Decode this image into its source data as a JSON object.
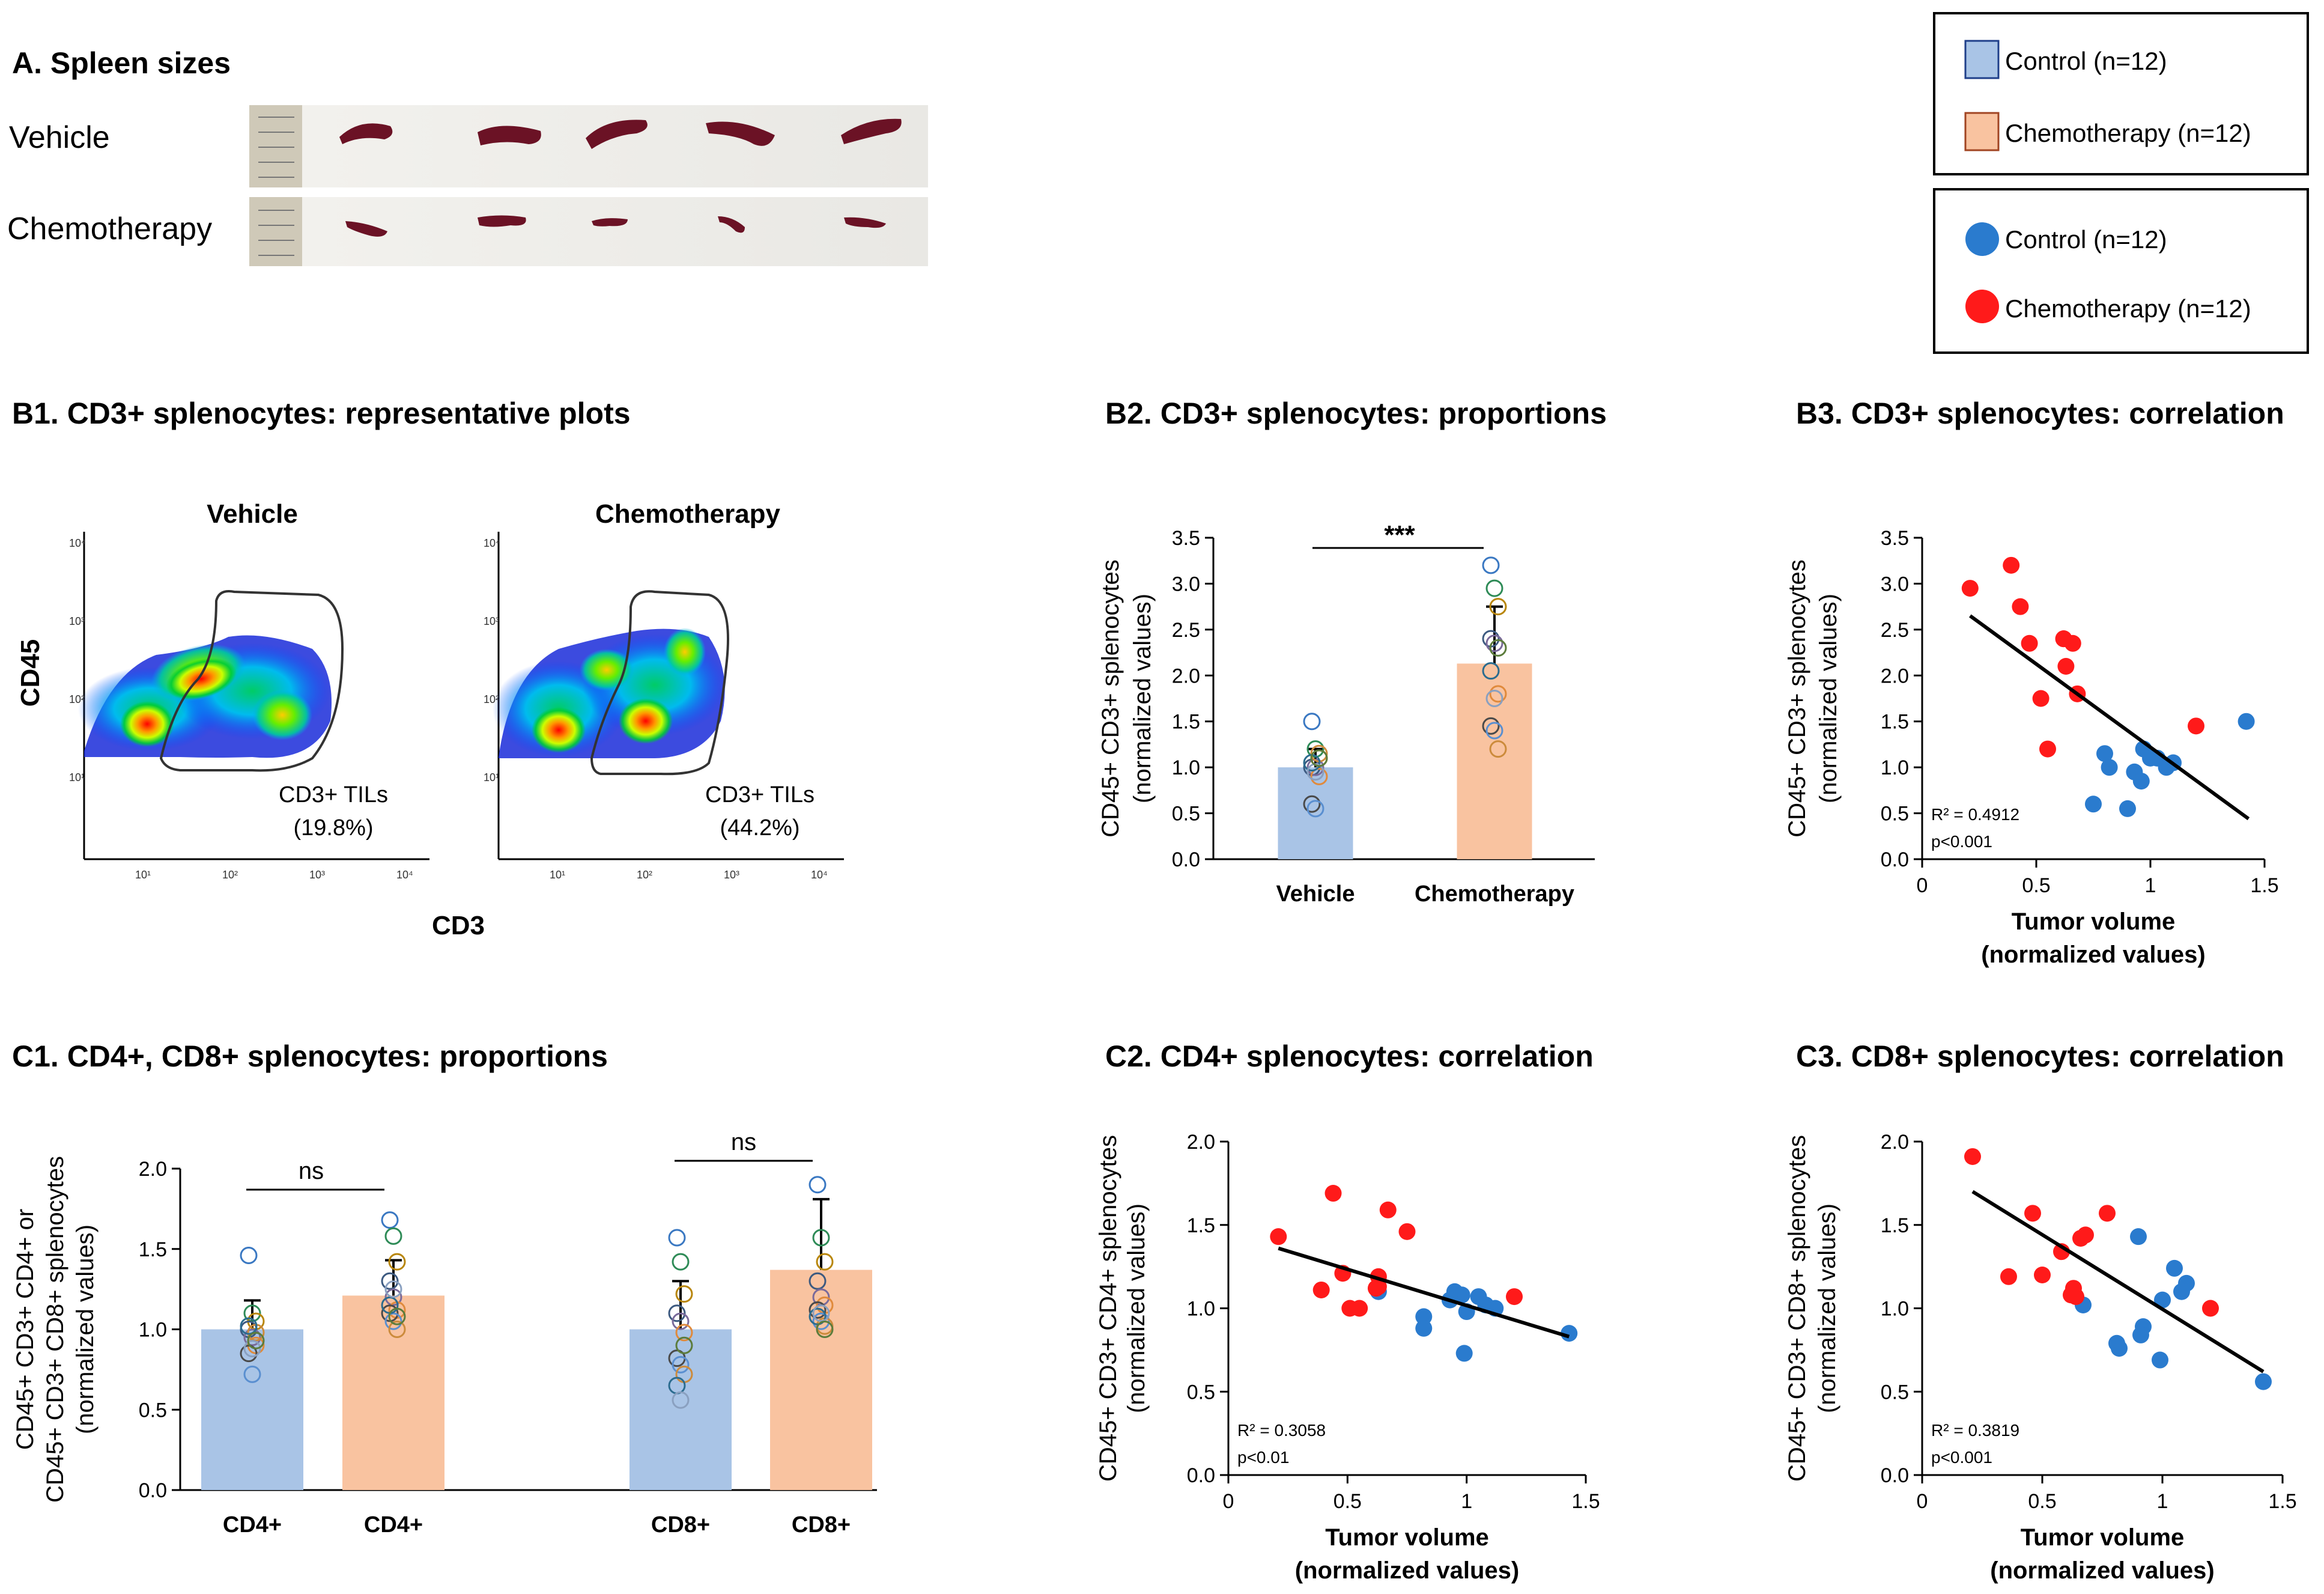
{
  "colors": {
    "control_bar": "#a9c4e6",
    "chemo_bar": "#f9c3a0",
    "control_dot": "#2a7bce",
    "chemo_dot": "#ff1a1a",
    "spleen": "#6b1225"
  },
  "panel_a": {
    "title": "A. Spleen sizes",
    "row_labels": [
      "Vehicle",
      "Chemotherapy"
    ]
  },
  "legend_bars": {
    "items": [
      "Control (n=12)",
      "Chemotherapy (n=12)"
    ]
  },
  "legend_dots": {
    "items": [
      "Control (n=12)",
      "Chemotherapy (n=12)"
    ]
  },
  "panel_b1": {
    "title": "B1. CD3+ splenocytes: representative plots",
    "plot_titles": [
      "Vehicle",
      "Chemotherapy"
    ],
    "gate_labels": [
      "CD3+ TILs",
      "CD3+ TILs"
    ],
    "gate_values": [
      "(19.8%)",
      "(44.2%)"
    ],
    "ylabel": "CD45",
    "xlabel": "CD3",
    "log_ticks": [
      "10¹",
      "10²",
      "10³",
      "10⁴"
    ]
  },
  "chart_data": [
    {
      "id": "B2",
      "type": "bar",
      "title": "B2. CD3+ splenocytes: proportions",
      "categories": [
        "Vehicle",
        "Chemotherapy"
      ],
      "values": [
        1.0,
        2.13
      ],
      "errors": [
        0.2,
        0.62
      ],
      "points": [
        [
          1.5,
          1.2,
          1.1,
          1.0,
          1.0,
          0.9,
          0.6,
          0.55,
          1.15,
          1.05,
          0.95,
          1.1
        ],
        [
          3.2,
          2.95,
          2.75,
          2.4,
          2.35,
          1.8,
          1.45,
          1.4,
          1.2,
          2.05,
          1.75,
          2.3
        ]
      ],
      "significance": "***",
      "ylabel": "CD45+ CD3+ splenocytes",
      "ylabel2": "(normalized values)",
      "ylim": [
        0,
        3.5
      ],
      "yticks": [
        "0.0",
        "0.5",
        "1.0",
        "1.5",
        "2.0",
        "2.5",
        "3.0",
        "3.5"
      ]
    },
    {
      "id": "B3",
      "type": "scatter",
      "title": "B3. CD3+ splenocytes: correlation",
      "control": {
        "x": [
          1.42,
          0.97,
          1.03,
          1.07,
          1.1,
          0.8,
          0.82,
          0.93,
          0.96,
          0.75,
          0.9,
          1.0
        ],
        "y": [
          1.5,
          1.2,
          1.1,
          1.0,
          1.05,
          1.15,
          1.0,
          0.95,
          0.85,
          0.6,
          0.55,
          1.1
        ]
      },
      "chemo": {
        "x": [
          0.21,
          0.43,
          0.39,
          0.47,
          0.62,
          0.66,
          0.63,
          0.68,
          0.52,
          0.55,
          1.2,
          0.62
        ],
        "y": [
          2.95,
          2.75,
          3.2,
          2.35,
          2.4,
          2.35,
          2.1,
          1.8,
          1.75,
          1.2,
          1.45,
          2.4
        ]
      },
      "trend": {
        "x": [
          0.21,
          1.43
        ],
        "y": [
          2.65,
          0.44
        ]
      },
      "r2": "R² = 0.4912",
      "p": "p<0.001",
      "ylabel": "CD45+ CD3+ splenocytes",
      "ylabel2": "(normalized values)",
      "xlabel": "Tumor volume",
      "xlabel2": "(normalized values)",
      "xlim": [
        0,
        1.5
      ],
      "ylim": [
        0,
        3.5
      ],
      "xticks": [
        "0",
        "0.5",
        "1",
        "1.5"
      ],
      "yticks": [
        "0.0",
        "0.5",
        "1.0",
        "1.5",
        "2.0",
        "2.5",
        "3.0",
        "3.5"
      ]
    },
    {
      "id": "C1",
      "type": "bar",
      "title": "C1. CD4+, CD8+ splenocytes: proportions",
      "categories": [
        "CD4+",
        "CD4+",
        "CD8+",
        "CD8+"
      ],
      "groups": [
        "control",
        "chemo",
        "control",
        "chemo"
      ],
      "values": [
        1.0,
        1.21,
        1.0,
        1.37
      ],
      "errors": [
        0.18,
        0.22,
        0.3,
        0.44
      ],
      "points": [
        [
          1.46,
          1.1,
          1.05,
          1.0,
          0.95,
          0.9,
          0.85,
          0.72,
          0.98,
          1.02,
          0.88,
          0.93
        ],
        [
          1.68,
          1.58,
          1.42,
          1.3,
          1.2,
          1.12,
          1.1,
          1.05,
          1.0,
          1.15,
          1.25,
          1.08
        ],
        [
          1.57,
          1.42,
          1.22,
          1.1,
          1.05,
          0.98,
          0.82,
          0.78,
          0.72,
          0.65,
          0.56,
          0.9
        ],
        [
          1.9,
          1.57,
          1.42,
          1.3,
          1.2,
          1.15,
          1.12,
          1.05,
          1.02,
          1.08,
          1.1,
          1.0
        ]
      ],
      "significance": [
        "ns",
        "ns"
      ],
      "ylabel": "CD45+ CD3+ CD4+ or",
      "ylabel2": "CD45+ CD3+ CD8+ splenocytes",
      "ylabel3": "(normalized values)",
      "ylim": [
        0,
        2.0
      ],
      "yticks": [
        "0.0",
        "0.5",
        "1.0",
        "1.5",
        "2.0"
      ]
    },
    {
      "id": "C2",
      "type": "scatter",
      "title": "C2. CD4+ splenocytes: correlation",
      "control": {
        "x": [
          1.43,
          0.95,
          0.98,
          1.05,
          1.08,
          1.12,
          0.82,
          0.82,
          0.93,
          0.99,
          0.63,
          1.0
        ],
        "y": [
          0.85,
          1.1,
          1.08,
          1.07,
          1.02,
          1.0,
          0.95,
          0.88,
          1.05,
          0.73,
          1.1,
          0.98
        ]
      },
      "chemo": {
        "x": [
          0.21,
          0.44,
          0.39,
          0.48,
          0.51,
          0.55,
          0.62,
          0.63,
          0.67,
          0.75,
          1.2,
          0.63
        ],
        "y": [
          1.43,
          1.69,
          1.11,
          1.21,
          1.0,
          1.0,
          1.12,
          1.19,
          1.59,
          1.46,
          1.07,
          1.13
        ]
      },
      "trend": {
        "x": [
          0.21,
          1.43
        ],
        "y": [
          1.36,
          0.83
        ]
      },
      "r2": "R² = 0.3058",
      "p": "p<0.01",
      "ylabel": "CD45+ CD3+ CD4+ splenocytes",
      "ylabel2": "(normalized values)",
      "xlabel": "Tumor volume",
      "xlabel2": "(normalized values)",
      "xlim": [
        0,
        1.5
      ],
      "ylim": [
        0,
        2.0
      ],
      "xticks": [
        "0",
        "0.5",
        "1",
        "1.5"
      ],
      "yticks": [
        "0.0",
        "0.5",
        "1.0",
        "1.5",
        "2.0"
      ]
    },
    {
      "id": "C3",
      "type": "scatter",
      "title": "C3. CD8+ splenocytes: correlation",
      "control": {
        "x": [
          1.42,
          0.9,
          1.05,
          1.1,
          1.08,
          1.0,
          0.92,
          0.81,
          0.82,
          0.91,
          0.99,
          0.67
        ],
        "y": [
          0.56,
          1.43,
          1.24,
          1.15,
          1.1,
          1.05,
          0.89,
          0.79,
          0.76,
          0.84,
          0.69,
          1.02
        ]
      },
      "chemo": {
        "x": [
          0.21,
          0.46,
          0.36,
          0.5,
          0.58,
          0.66,
          0.63,
          0.64,
          0.77,
          0.68,
          1.2,
          0.62
        ],
        "y": [
          1.91,
          1.57,
          1.19,
          1.2,
          1.34,
          1.42,
          1.12,
          1.07,
          1.57,
          1.44,
          1.0,
          1.08
        ]
      },
      "trend": {
        "x": [
          0.21,
          1.42
        ],
        "y": [
          1.7,
          0.62
        ]
      },
      "r2": "R² = 0.3819",
      "p": "p<0.001",
      "ylabel": "CD45+ CD3+ CD8+ splenocytes",
      "ylabel2": "(normalized values)",
      "xlabel": "Tumor volume",
      "xlabel2": "(normalized values)",
      "xlim": [
        0,
        1.5
      ],
      "ylim": [
        0,
        2.0
      ],
      "xticks": [
        "0",
        "0.5",
        "1",
        "1.5"
      ],
      "yticks": [
        "0.0",
        "0.5",
        "1.0",
        "1.5",
        "2.0"
      ]
    }
  ]
}
